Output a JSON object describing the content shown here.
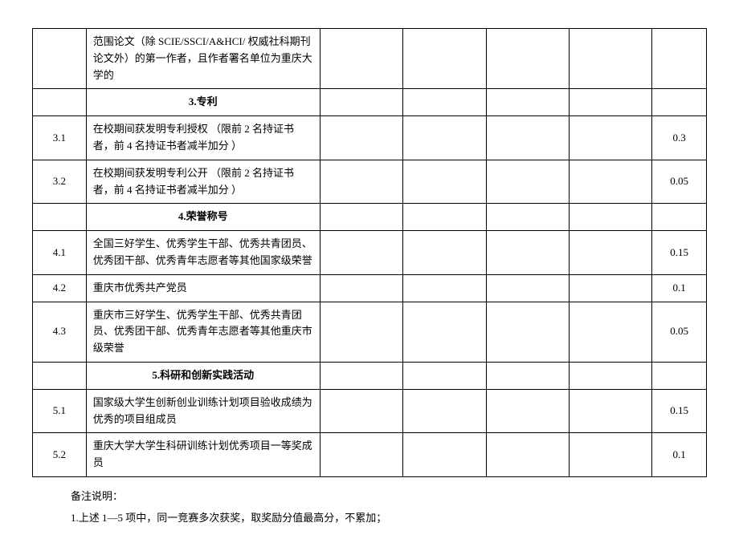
{
  "rows": [
    {
      "id": "",
      "desc": "范围论文（除 SCIE/SSCI/A&HCI/ 权威社科期刊论文外）的第一作者，且作者署名单位为重庆大学的",
      "score": "",
      "section": false,
      "continuation": true
    },
    {
      "id": "",
      "desc": "3.专利",
      "score": "",
      "section": true,
      "continuation": false
    },
    {
      "id": "3.1",
      "desc": "在校期间获发明专利授权 （限前 2 名持证书者，前 4 名持证书者减半加分 ）",
      "score": "0.3",
      "section": false,
      "continuation": false
    },
    {
      "id": "3.2",
      "desc": "在校期间获发明专利公开 （限前 2 名持证书者，前 4 名持证书者减半加分 ）",
      "score": "0.05",
      "section": false,
      "continuation": false
    },
    {
      "id": "",
      "desc": "4.荣誉称号",
      "score": "",
      "section": true,
      "continuation": false
    },
    {
      "id": "4.1",
      "desc": "全国三好学生、优秀学生干部、优秀共青团员、优秀团干部、优秀青年志愿者等其他国家级荣誉",
      "score": "0.15",
      "section": false,
      "continuation": false
    },
    {
      "id": "4.2",
      "desc": "重庆市优秀共产党员",
      "score": "0.1",
      "section": false,
      "continuation": false
    },
    {
      "id": "4.3",
      "desc": "重庆市三好学生、优秀学生干部、优秀共青团员、优秀团干部、优秀青年志愿者等其他重庆市级荣誉",
      "score": "0.05",
      "section": false,
      "continuation": false
    },
    {
      "id": "",
      "desc": "5.科研和创新实践活动",
      "score": "",
      "section": true,
      "continuation": false
    },
    {
      "id": "5.1",
      "desc": "国家级大学生创新创业训练计划项目验收成绩为优秀的项目组成员",
      "score": "0.15",
      "section": false,
      "continuation": false
    },
    {
      "id": "5.2",
      "desc": "重庆大学大学生科研训练计划优秀项目一等奖成员",
      "score": "0.1",
      "section": false,
      "continuation": false
    }
  ],
  "footnotes": {
    "header": "备注说明：",
    "note1": "1.上述 1—5 项中，同一竞赛多次获奖，取奖励分值最高分，不累加；"
  }
}
